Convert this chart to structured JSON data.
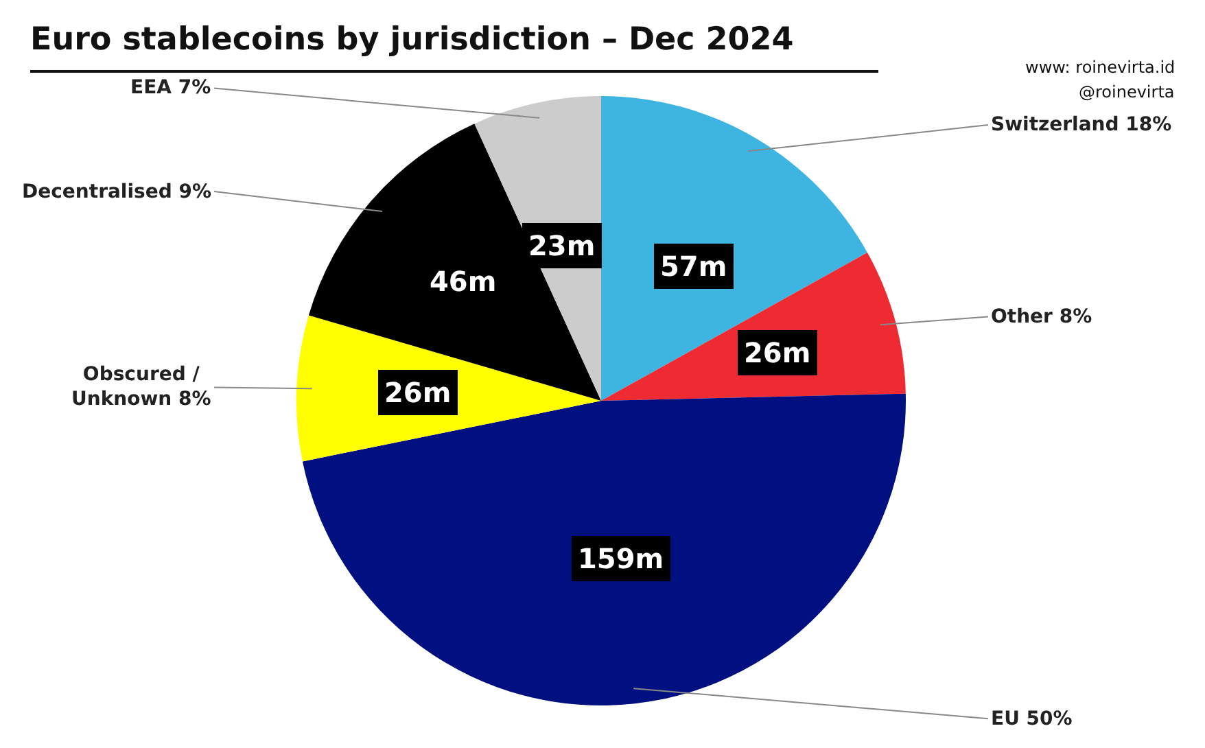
{
  "chart_data": {
    "type": "pie",
    "title": "Euro stablecoins by jurisdiction – Dec 2024",
    "categories": [
      "Switzerland 18%",
      "Other 8%",
      "EU 50%",
      "Obscured / Unknown 8%",
      "Decentralised 9%",
      "EEA 7%"
    ],
    "values": [
      57,
      26,
      159,
      26,
      46,
      23
    ],
    "colors": [
      "#3db5e0",
      "#ee2a32",
      "#001080",
      "#ffff00",
      "#000000",
      "#cccccc"
    ],
    "value_labels": [
      "57m",
      "26m",
      "159m",
      "26m",
      "46m",
      "23m"
    ],
    "annotations": [
      "www: roinevirta.id",
      "@roinevirta"
    ],
    "legend": false
  }
}
